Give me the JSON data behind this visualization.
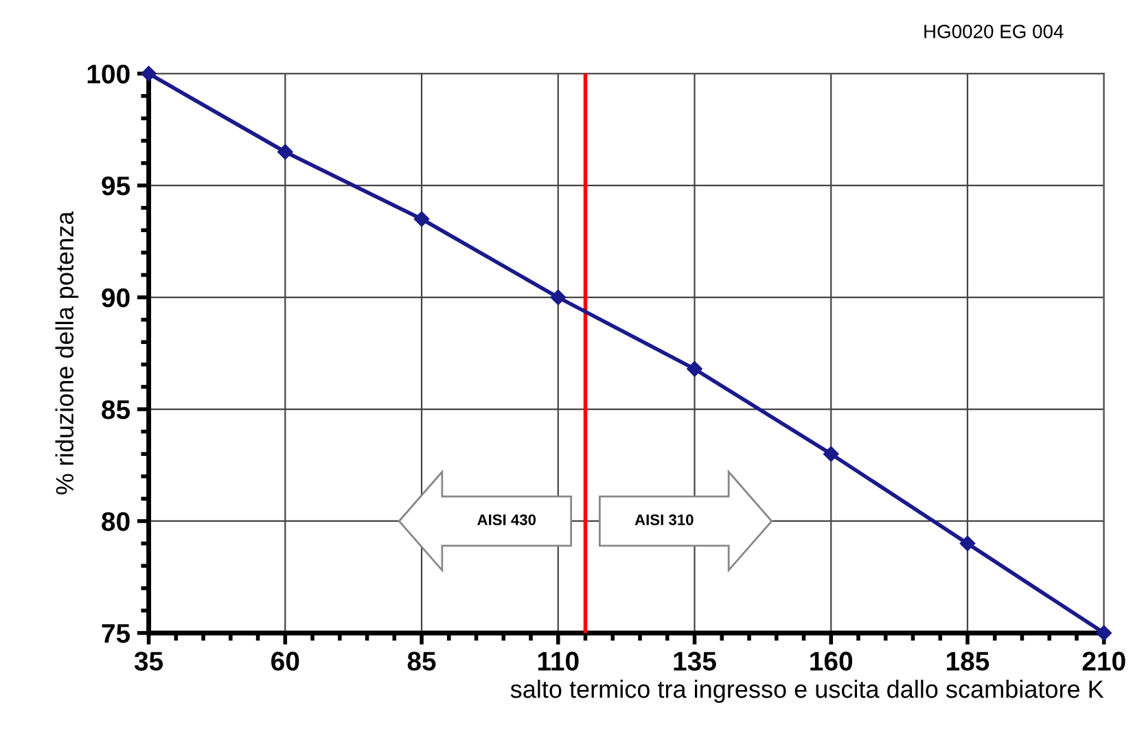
{
  "chart_data": {
    "type": "line",
    "xlabel": "salto termico tra ingresso e uscita dallo scambiatore K",
    "ylabel": "% riduzione della potenza",
    "x": [
      35,
      60,
      85,
      110,
      135,
      160,
      185,
      210
    ],
    "series": [
      {
        "color": "#1a1a8c",
        "values": [
          100,
          96.5,
          93.5,
          90,
          86.8,
          83,
          79,
          75
        ]
      }
    ],
    "xlim": [
      35,
      210
    ],
    "xticks": [
      35,
      60,
      85,
      110,
      135,
      160,
      185,
      210
    ],
    "ylim": [
      75,
      100
    ],
    "yticks": [
      75,
      80,
      85,
      90,
      95,
      100
    ],
    "grid": true,
    "marker": "diamond",
    "line_style": "solid",
    "ref_lines": [
      {
        "axis": "x",
        "value": 115,
        "color": "#ff0000"
      }
    ],
    "annotations": [
      "HG0020 EG 004",
      "AISI 430",
      "AISI 310"
    ]
  }
}
